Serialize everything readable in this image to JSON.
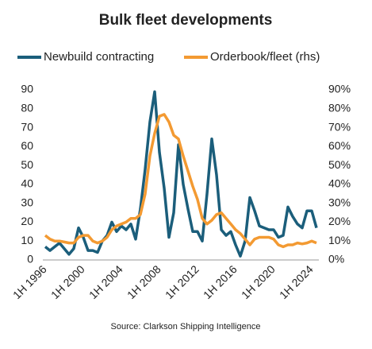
{
  "chart_data": {
    "type": "line",
    "title": "Bulk fleet developments",
    "source": "Source: Clarkson Shipping Intelligence",
    "categories": [
      "1H 1996",
      null,
      null,
      null,
      null,
      null,
      null,
      null,
      "1H 2000",
      null,
      null,
      null,
      null,
      null,
      null,
      null,
      "1H 2004",
      null,
      null,
      null,
      null,
      null,
      null,
      null,
      "1H 2008",
      null,
      null,
      null,
      null,
      null,
      null,
      null,
      "1H 2012",
      null,
      null,
      null,
      null,
      null,
      null,
      null,
      "1H 2016",
      null,
      null,
      null,
      null,
      null,
      null,
      null,
      "1H 2020",
      null,
      null,
      null,
      null,
      null,
      null,
      null,
      "1H 2024",
      null
    ],
    "series": [
      {
        "name": "Newbuild contracting",
        "color": "#1b5e7b",
        "axis": "y",
        "values": [
          7,
          5,
          7,
          9,
          6,
          3,
          6,
          17,
          12,
          5,
          5,
          4,
          10,
          13,
          20,
          15,
          18,
          16,
          19,
          11,
          27,
          48,
          73,
          89,
          57,
          38,
          12,
          25,
          61,
          40,
          27,
          15,
          15,
          10,
          35,
          64,
          45,
          16,
          13,
          15,
          8,
          2,
          10,
          33,
          26,
          18,
          17,
          16,
          16,
          12,
          13,
          28,
          23,
          19,
          17,
          26,
          26,
          17
        ]
      },
      {
        "name": "Orderbook/fleet (rhs)",
        "color": "#f39a32",
        "axis": "y2",
        "values": [
          13,
          11,
          10,
          10,
          9.5,
          9,
          9,
          12,
          13,
          13,
          10,
          9,
          10,
          12,
          16,
          18,
          19,
          20,
          22,
          22,
          24,
          35,
          55,
          67,
          76,
          77,
          73,
          66,
          64,
          55,
          47,
          39,
          32,
          22,
          19,
          21,
          24,
          25,
          22,
          19,
          16,
          14,
          11,
          8,
          11,
          12,
          12,
          12,
          11,
          8,
          7,
          8,
          8,
          9,
          8.5,
          9,
          10,
          9
        ]
      }
    ],
    "ylim": [
      0,
      90
    ],
    "yticks": [
      0,
      10,
      20,
      30,
      40,
      50,
      60,
      70,
      80,
      90
    ],
    "y2lim": [
      0,
      90
    ],
    "y2ticks": [
      {
        "value": 0,
        "label": "0%"
      },
      {
        "value": 10,
        "label": "10%"
      },
      {
        "value": 20,
        "label": "20%"
      },
      {
        "value": 30,
        "label": "30%"
      },
      {
        "value": 40,
        "label": "40%"
      },
      {
        "value": 50,
        "label": "50%"
      },
      {
        "value": 60,
        "label": "60%"
      },
      {
        "value": 70,
        "label": "70%"
      },
      {
        "value": 80,
        "label": "80%"
      },
      {
        "value": 90,
        "label": "90%"
      }
    ],
    "grid": false,
    "legend": "top"
  }
}
